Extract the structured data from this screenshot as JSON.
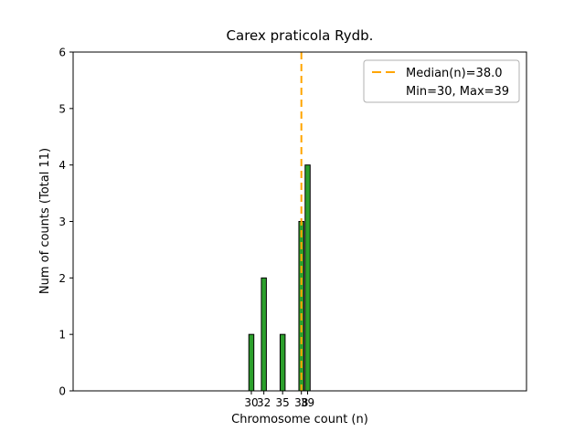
{
  "chart_data": {
    "type": "bar",
    "title": "Carex praticola Rydb.",
    "xlabel": "Chromosome count (n)",
    "ylabel": "Num of counts     (Total 11)",
    "categories": [
      30,
      32,
      35,
      38,
      39
    ],
    "values": [
      1,
      2,
      1,
      3,
      4
    ],
    "total_counts": 11,
    "median": 38.0,
    "min": 30,
    "max": 39,
    "xlim": [
      1.5,
      74
    ],
    "ylim": [
      0,
      6
    ],
    "xticks": [
      30,
      32,
      35,
      38,
      39
    ],
    "yticks": [
      0,
      1,
      2,
      3,
      4,
      5,
      6
    ],
    "grid": false,
    "legend_position": "upper right",
    "bar_color": "#2ca02c",
    "bar_edge_color": "#000000",
    "median_line_color": "#ffa500",
    "legend": {
      "line1": "Median(n)=38.0",
      "line2": "Min=30, Max=39"
    }
  }
}
